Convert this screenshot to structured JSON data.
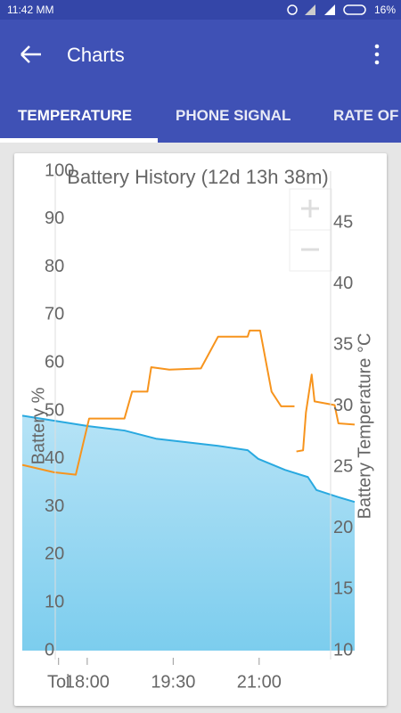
{
  "status_bar": {
    "time": "11:42 MM",
    "battery": "16%"
  },
  "app_bar": {
    "title": "Charts"
  },
  "tabs": [
    "TEMPERATURE",
    "PHONE SIGNAL",
    "RATE OF"
  ],
  "chart_data": {
    "type": "line",
    "title": "Battery History (12d 13h 38m)",
    "y_label": "Battery %",
    "y2_label": "Battery Temperature °C",
    "xlim": [
      1012,
      1360
    ],
    "xticks": [
      {
        "value": 1050,
        "label": "Toi"
      },
      {
        "value": 1080,
        "label": "18:00"
      },
      {
        "value": 1170,
        "label": "19:30"
      },
      {
        "value": 1260,
        "label": "21:00"
      }
    ],
    "ylim": [
      0,
      100
    ],
    "yticks": [
      0,
      10,
      20,
      30,
      40,
      50,
      60,
      70,
      80,
      90,
      100
    ],
    "y2lim": [
      10,
      49.25
    ],
    "y2ticks": [
      10,
      15,
      20,
      25,
      30,
      35,
      40,
      45
    ],
    "series": [
      {
        "color": "#29a9e0",
        "fill": true,
        "x": [
          1012,
          1082,
          1119,
          1152,
          1217,
          1248,
          1259,
          1287,
          1311,
          1320,
          1343,
          1360
        ],
        "values": [
          49,
          46.8,
          45.9,
          44.2,
          42.7,
          41.8,
          40,
          37.7,
          36.2,
          33.5,
          32,
          31
        ]
      },
      {
        "color": "#f7941d",
        "axis": "y2",
        "x": [
          1012,
          1045,
          1068,
          1082,
          1119,
          1127,
          1143,
          1147,
          1166,
          1199,
          1217,
          1248,
          1250,
          1261,
          1273,
          1283,
          1297,
          null,
          1299,
          1306,
          1309,
          1315,
          1318,
          1325,
          1339,
          1343,
          1360
        ],
        "values": [
          25.2,
          24.6,
          24.4,
          29,
          29,
          31.2,
          31.2,
          33.2,
          33,
          33.1,
          35.7,
          35.7,
          36.2,
          36.2,
          31.2,
          30,
          30,
          null,
          26.3,
          26.4,
          29.5,
          32.6,
          30.4,
          30.3,
          30.1,
          28.6,
          28.5
        ]
      }
    ]
  }
}
